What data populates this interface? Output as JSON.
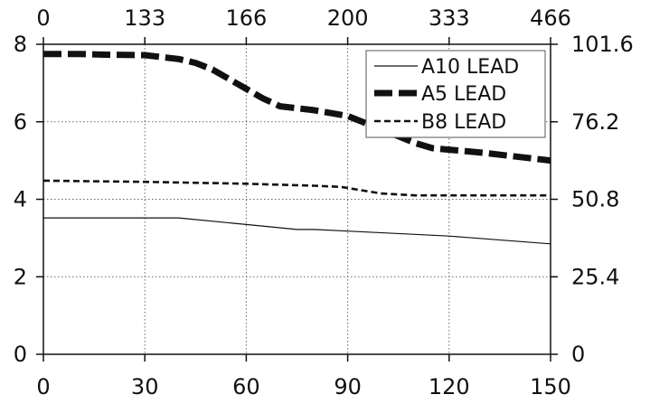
{
  "chart_data": {
    "type": "line",
    "title": "",
    "xlabel": "",
    "ylabel": "",
    "x_bottom_ticks": [
      "0",
      "30",
      "60",
      "90",
      "120",
      "150"
    ],
    "x_top_ticks": [
      "0",
      "133",
      "166",
      "200",
      "333",
      "466"
    ],
    "y_left_ticks": [
      "0",
      "2",
      "4",
      "6",
      "8"
    ],
    "y_right_ticks": [
      "0",
      "25.4",
      "50.8",
      "76.2",
      "101.6"
    ],
    "xlim": [
      0,
      150
    ],
    "ylim": [
      0,
      8
    ],
    "grid": true,
    "legend_position": "top-right",
    "series": [
      {
        "name": "A10 LEAD",
        "style": "thin-solid",
        "x": [
          0,
          40,
          60,
          75,
          80,
          90,
          120,
          150
        ],
        "y": [
          3.52,
          3.52,
          3.35,
          3.22,
          3.22,
          3.18,
          3.05,
          2.85
        ]
      },
      {
        "name": "A5 LEAD",
        "style": "thick-dashed",
        "x": [
          0,
          10,
          20,
          30,
          40,
          45,
          50,
          55,
          60,
          65,
          70,
          80,
          90,
          100,
          110,
          115,
          120,
          130,
          140,
          150
        ],
        "y": [
          7.75,
          7.75,
          7.73,
          7.72,
          7.62,
          7.52,
          7.35,
          7.1,
          6.85,
          6.6,
          6.4,
          6.3,
          6.15,
          5.8,
          5.45,
          5.32,
          5.28,
          5.2,
          5.1,
          5.0
        ]
      },
      {
        "name": "B8 LEAD",
        "style": "medium-dashed",
        "x": [
          0,
          30,
          60,
          80,
          88,
          95,
          100,
          110,
          120,
          140,
          150
        ],
        "y": [
          4.48,
          4.45,
          4.4,
          4.35,
          4.32,
          4.22,
          4.15,
          4.1,
          4.1,
          4.1,
          4.1
        ]
      }
    ]
  }
}
